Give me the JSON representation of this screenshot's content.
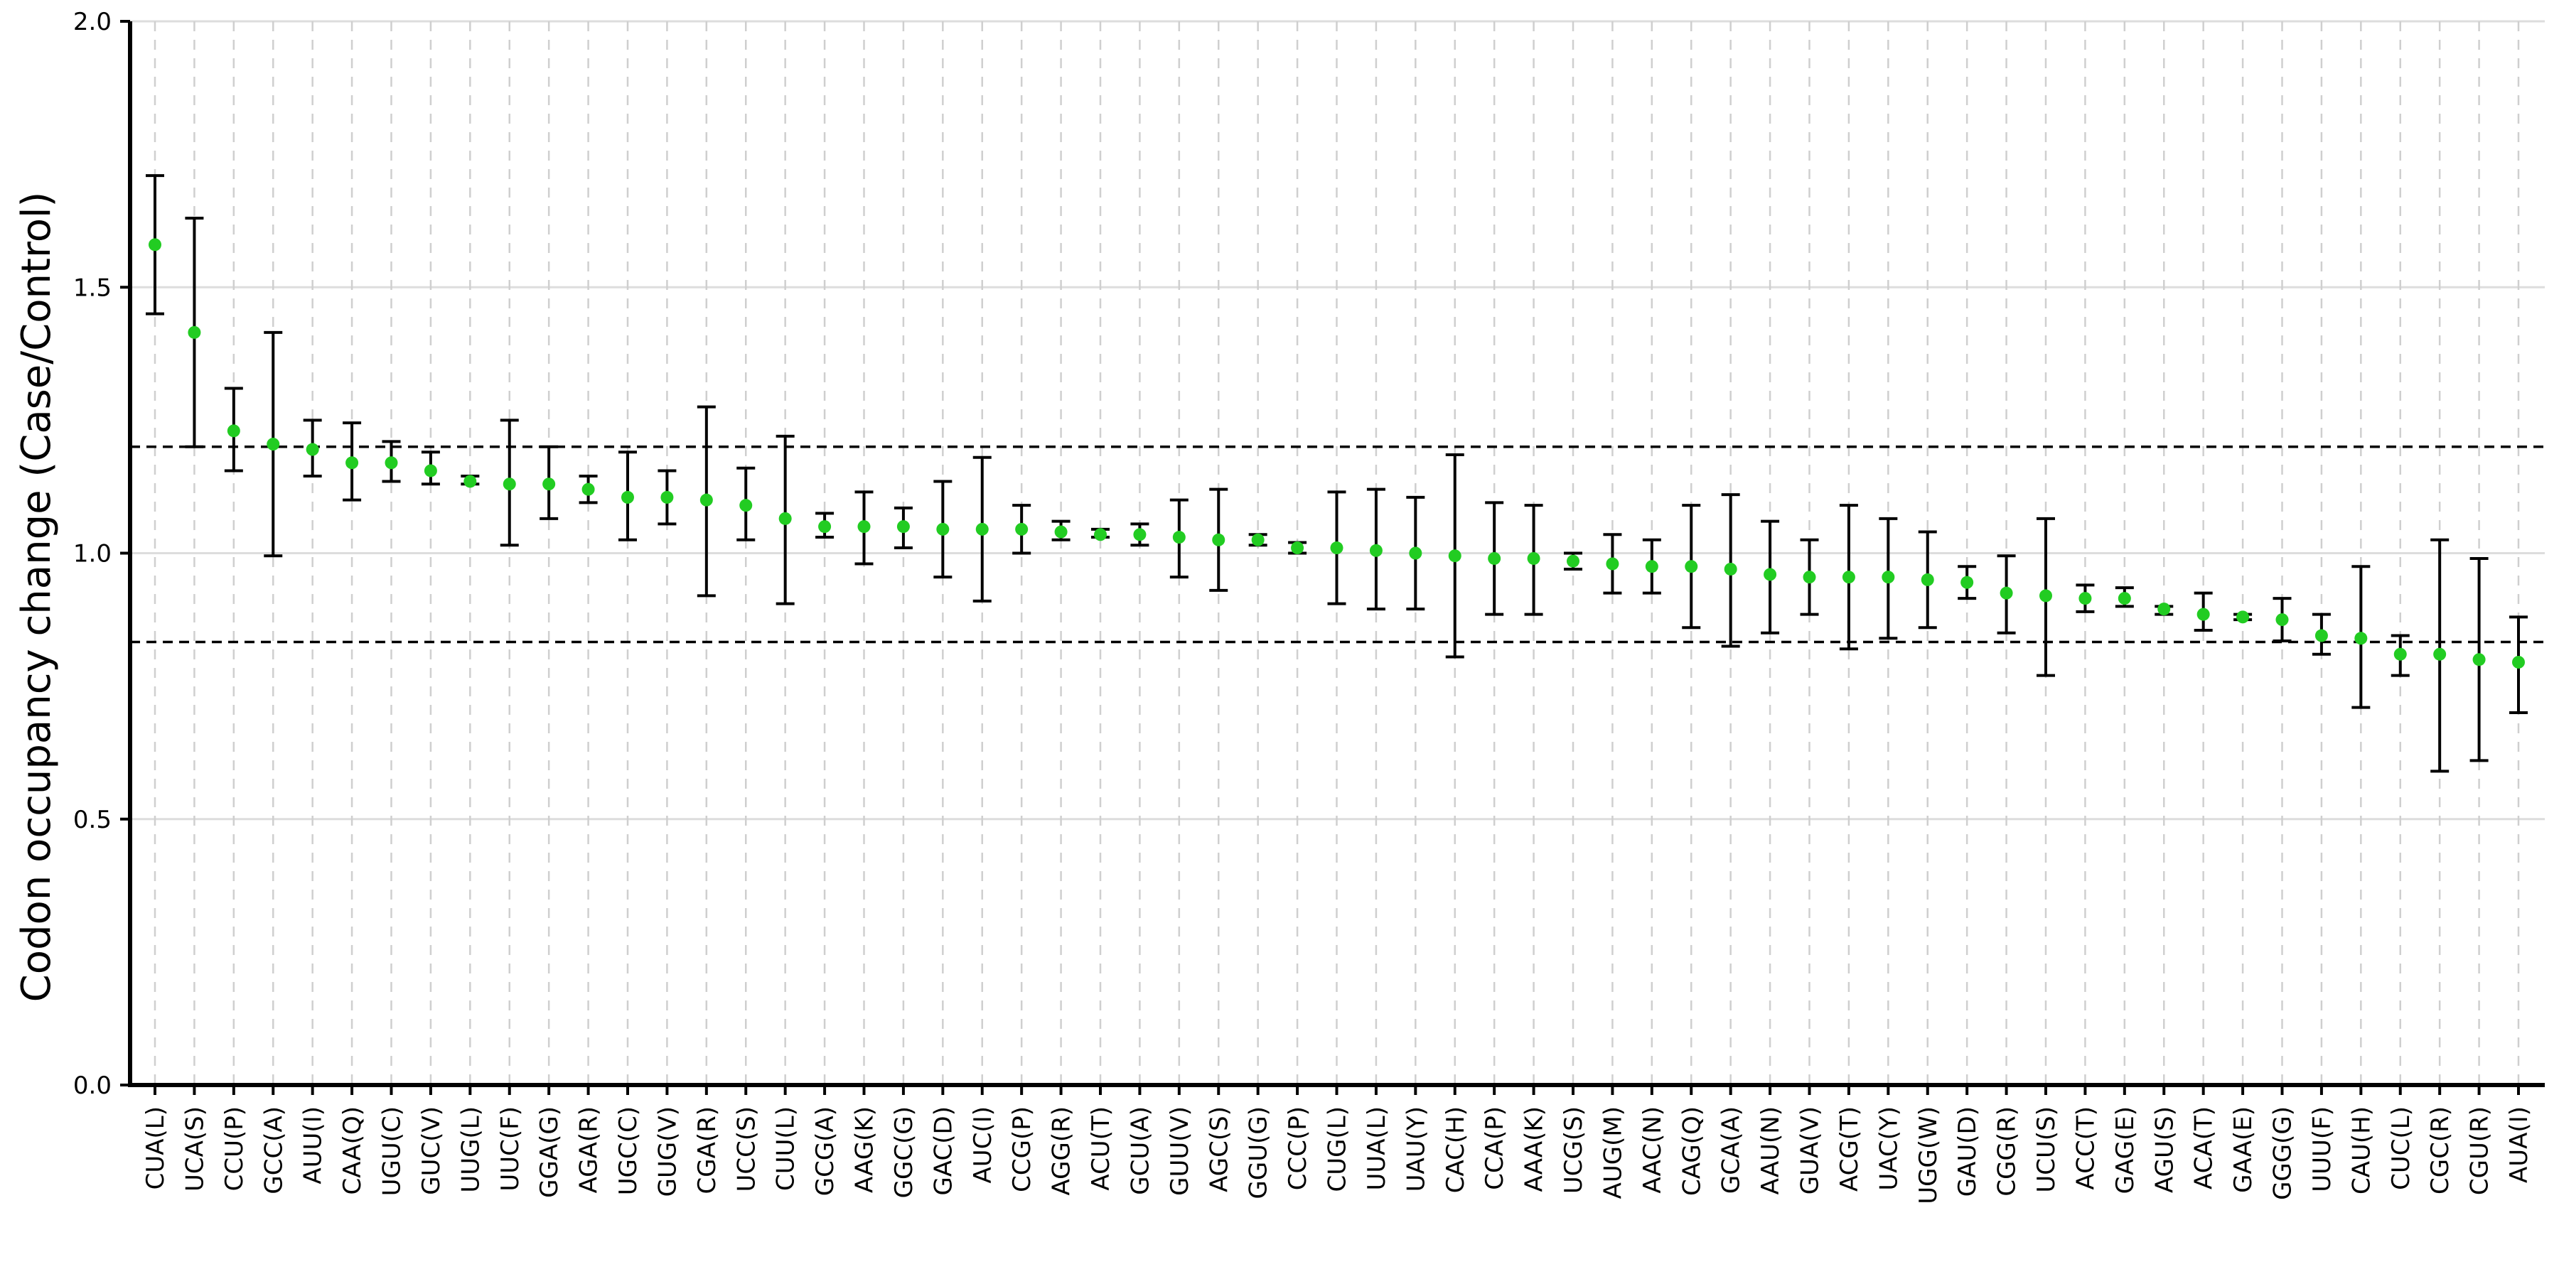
{
  "chart_data": {
    "type": "scatter",
    "title": "",
    "xlabel": "",
    "ylabel": "Codon occupancy change (Case/Control)",
    "ylim": [
      0.0,
      2.0
    ],
    "yticks": [
      "0.0",
      "0.5",
      "1.0",
      "1.5",
      "2.0"
    ],
    "reference_lines": [
      1.2,
      0.833
    ],
    "grid": true,
    "legend": "none",
    "colors": {
      "point": "#22cc22",
      "errorbar": "#000000",
      "reference": "#000000",
      "grid_h": "#dddddd",
      "grid_v": "#cfcfcf"
    },
    "categories": [
      "CUA(L)",
      "UCA(S)",
      "CCU(P)",
      "GCC(A)",
      "AUU(I)",
      "CAA(Q)",
      "UGU(C)",
      "GUC(V)",
      "UUG(L)",
      "UUC(F)",
      "GGA(G)",
      "AGA(R)",
      "UGC(C)",
      "GUG(V)",
      "CGA(R)",
      "UCC(S)",
      "CUU(L)",
      "GCG(A)",
      "AAG(K)",
      "GGC(G)",
      "GAC(D)",
      "AUC(I)",
      "CCG(P)",
      "AGG(R)",
      "ACU(T)",
      "GCU(A)",
      "GUU(V)",
      "AGC(S)",
      "GGU(G)",
      "CCC(P)",
      "CUG(L)",
      "UUA(L)",
      "UAU(Y)",
      "CAC(H)",
      "CCA(P)",
      "AAA(K)",
      "UCG(S)",
      "AUG(M)",
      "AAC(N)",
      "CAG(Q)",
      "GCA(A)",
      "AAU(N)",
      "GUA(V)",
      "ACG(T)",
      "UAC(Y)",
      "UGG(W)",
      "GAU(D)",
      "CGG(R)",
      "UCU(S)",
      "ACC(T)",
      "GAG(E)",
      "AGU(S)",
      "ACA(T)",
      "GAA(E)",
      "GGG(G)",
      "UUU(F)",
      "CAU(H)",
      "CUC(L)",
      "CGC(R)",
      "CGU(R)",
      "AUA(I)"
    ],
    "values": [
      1.58,
      1.415,
      1.23,
      1.205,
      1.195,
      1.17,
      1.17,
      1.155,
      1.135,
      1.13,
      1.13,
      1.12,
      1.105,
      1.105,
      1.1,
      1.09,
      1.065,
      1.05,
      1.05,
      1.05,
      1.045,
      1.045,
      1.045,
      1.04,
      1.035,
      1.035,
      1.03,
      1.025,
      1.025,
      1.01,
      1.01,
      1.005,
      1.0,
      0.995,
      0.99,
      0.99,
      0.985,
      0.98,
      0.975,
      0.975,
      0.97,
      0.96,
      0.955,
      0.955,
      0.955,
      0.95,
      0.945,
      0.925,
      0.92,
      0.915,
      0.915,
      0.895,
      0.885,
      0.88,
      0.875,
      0.845,
      0.84,
      0.81,
      0.81,
      0.8,
      0.795
    ],
    "lower": [
      1.45,
      1.2,
      1.155,
      0.995,
      1.145,
      1.1,
      1.135,
      1.13,
      1.13,
      1.015,
      1.065,
      1.095,
      1.025,
      1.055,
      0.92,
      1.025,
      0.905,
      1.03,
      0.98,
      1.01,
      0.955,
      0.91,
      1.0,
      1.025,
      1.03,
      1.015,
      0.955,
      0.93,
      1.015,
      1.0,
      0.905,
      0.895,
      0.895,
      0.805,
      0.885,
      0.885,
      0.97,
      0.925,
      0.925,
      0.86,
      0.825,
      0.85,
      0.885,
      0.82,
      0.84,
      0.86,
      0.915,
      0.85,
      0.77,
      0.89,
      0.9,
      0.885,
      0.855,
      0.875,
      0.835,
      0.81,
      0.71,
      0.77,
      0.59,
      0.61,
      0.7
    ],
    "upper": [
      1.71,
      1.63,
      1.31,
      1.415,
      1.25,
      1.245,
      1.21,
      1.19,
      1.145,
      1.25,
      1.2,
      1.145,
      1.19,
      1.155,
      1.275,
      1.16,
      1.22,
      1.075,
      1.115,
      1.085,
      1.135,
      1.18,
      1.09,
      1.06,
      1.045,
      1.055,
      1.1,
      1.12,
      1.035,
      1.02,
      1.115,
      1.12,
      1.105,
      1.185,
      1.095,
      1.09,
      1.0,
      1.035,
      1.025,
      1.09,
      1.11,
      1.06,
      1.025,
      1.09,
      1.065,
      1.04,
      0.975,
      0.995,
      1.065,
      0.94,
      0.935,
      0.9,
      0.925,
      0.885,
      0.915,
      0.885,
      0.975,
      0.845,
      1.025,
      0.99,
      0.88
    ]
  }
}
